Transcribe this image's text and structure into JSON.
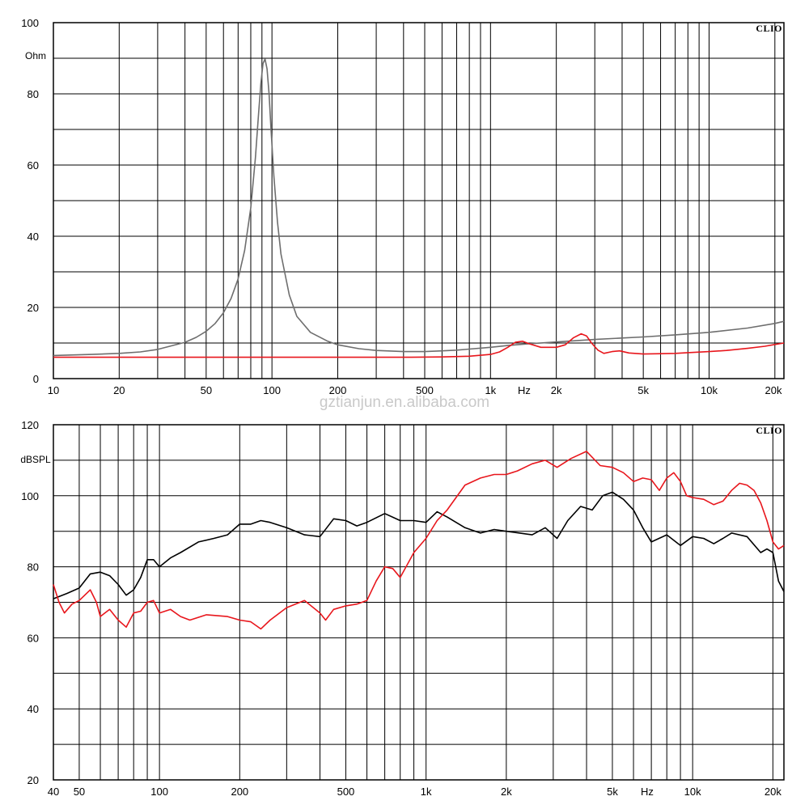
{
  "watermark": "gztianjun.en.alibaba.com",
  "chart_data": [
    {
      "type": "line",
      "brand": "CLIO",
      "ylabel": "Ohm",
      "xunit": "Hz",
      "xscale": "log",
      "xlim": [
        10,
        22000
      ],
      "ylim": [
        0,
        100
      ],
      "grid": true,
      "xticks": [
        {
          "v": 10,
          "label": "10"
        },
        {
          "v": 20,
          "label": "20"
        },
        {
          "v": 50,
          "label": "50"
        },
        {
          "v": 100,
          "label": "100"
        },
        {
          "v": 200,
          "label": "200"
        },
        {
          "v": 500,
          "label": "500"
        },
        {
          "v": 1000,
          "label": "1k"
        },
        {
          "v": 2000,
          "label": "2k"
        },
        {
          "v": 5000,
          "label": "5k"
        },
        {
          "v": 10000,
          "label": "10k"
        },
        {
          "v": 20000,
          "label": "20k"
        }
      ],
      "yticks": [
        {
          "v": 0,
          "label": "0"
        },
        {
          "v": 20,
          "label": "20"
        },
        {
          "v": 40,
          "label": "40"
        },
        {
          "v": 60,
          "label": "60"
        },
        {
          "v": 80,
          "label": "80"
        },
        {
          "v": 100,
          "label": "100"
        }
      ],
      "series": [
        {
          "color": "#6e6e6e",
          "points": [
            [
              10,
              6.5
            ],
            [
              15,
              6.8
            ],
            [
              20,
              7.1
            ],
            [
              25,
              7.5
            ],
            [
              30,
              8.2
            ],
            [
              40,
              10.2
            ],
            [
              45,
              11.6
            ],
            [
              50,
              13.3
            ],
            [
              55,
              15.5
            ],
            [
              60,
              18.5
            ],
            [
              65,
              22.5
            ],
            [
              70,
              28
            ],
            [
              75,
              36
            ],
            [
              80,
              48
            ],
            [
              84,
              62
            ],
            [
              87,
              75
            ],
            [
              89,
              83
            ],
            [
              91,
              88.5
            ],
            [
              93,
              89.8
            ],
            [
              95,
              87
            ],
            [
              97,
              80
            ],
            [
              99,
              70
            ],
            [
              102,
              57
            ],
            [
              106,
              44
            ],
            [
              110,
              35
            ],
            [
              120,
              23.5
            ],
            [
              130,
              17.5
            ],
            [
              150,
              13
            ],
            [
              180,
              10.5
            ],
            [
              200,
              9.5
            ],
            [
              250,
              8.4
            ],
            [
              300,
              7.9
            ],
            [
              400,
              7.6
            ],
            [
              500,
              7.6
            ],
            [
              600,
              7.8
            ],
            [
              700,
              8
            ],
            [
              800,
              8.3
            ],
            [
              1000,
              8.8
            ],
            [
              1200,
              9.3
            ],
            [
              1500,
              9.8
            ],
            [
              2000,
              10.3
            ],
            [
              3000,
              11
            ],
            [
              4000,
              11.4
            ],
            [
              5000,
              11.7
            ],
            [
              7000,
              12.3
            ],
            [
              10000,
              13
            ],
            [
              15000,
              14.2
            ],
            [
              20000,
              15.5
            ],
            [
              22000,
              16.1
            ]
          ]
        },
        {
          "color": "#e8161c",
          "points": [
            [
              10,
              6
            ],
            [
              50,
              6
            ],
            [
              100,
              6
            ],
            [
              200,
              6
            ],
            [
              400,
              6
            ],
            [
              600,
              6.1
            ],
            [
              800,
              6.3
            ],
            [
              1000,
              6.8
            ],
            [
              1100,
              7.5
            ],
            [
              1200,
              8.8
            ],
            [
              1300,
              10.2
            ],
            [
              1400,
              10.5
            ],
            [
              1500,
              9.8
            ],
            [
              1700,
              8.8
            ],
            [
              2000,
              8.8
            ],
            [
              2200,
              9.5
            ],
            [
              2400,
              11.5
            ],
            [
              2600,
              12.6
            ],
            [
              2750,
              12
            ],
            [
              2900,
              10
            ],
            [
              3100,
              8
            ],
            [
              3300,
              7.1
            ],
            [
              3600,
              7.6
            ],
            [
              3900,
              7.8
            ],
            [
              4300,
              7.2
            ],
            [
              5000,
              6.9
            ],
            [
              6000,
              7
            ],
            [
              7000,
              7.1
            ],
            [
              8000,
              7.3
            ],
            [
              10000,
              7.6
            ],
            [
              12000,
              7.9
            ],
            [
              15000,
              8.5
            ],
            [
              18000,
              9.1
            ],
            [
              20000,
              9.6
            ],
            [
              22000,
              10
            ]
          ]
        }
      ]
    },
    {
      "type": "line",
      "brand": "CLIO",
      "ylabel": "dBSPL",
      "xunit": "Hz",
      "xscale": "log",
      "xlim": [
        40,
        22000
      ],
      "ylim": [
        20,
        120
      ],
      "grid": true,
      "xticks": [
        {
          "v": 40,
          "label": "40"
        },
        {
          "v": 50,
          "label": "50"
        },
        {
          "v": 100,
          "label": "100"
        },
        {
          "v": 200,
          "label": "200"
        },
        {
          "v": 500,
          "label": "500"
        },
        {
          "v": 1000,
          "label": "1k"
        },
        {
          "v": 2000,
          "label": "2k"
        },
        {
          "v": 5000,
          "label": "5k"
        },
        {
          "v": 10000,
          "label": "10k"
        },
        {
          "v": 20000,
          "label": "20k"
        }
      ],
      "yticks": [
        {
          "v": 20,
          "label": "20"
        },
        {
          "v": 40,
          "label": "40"
        },
        {
          "v": 60,
          "label": "60"
        },
        {
          "v": 80,
          "label": "80"
        },
        {
          "v": 100,
          "label": "100"
        },
        {
          "v": 120,
          "label": "120"
        }
      ],
      "series": [
        {
          "color": "#000000",
          "points": [
            [
              40,
              71
            ],
            [
              45,
              72.5
            ],
            [
              50,
              74
            ],
            [
              55,
              78
            ],
            [
              60,
              78.5
            ],
            [
              65,
              77.5
            ],
            [
              70,
              75
            ],
            [
              75,
              72
            ],
            [
              80,
              73.5
            ],
            [
              85,
              77
            ],
            [
              90,
              82
            ],
            [
              95,
              82
            ],
            [
              100,
              80
            ],
            [
              110,
              82.5
            ],
            [
              120,
              84
            ],
            [
              140,
              87
            ],
            [
              160,
              88
            ],
            [
              180,
              89
            ],
            [
              200,
              92
            ],
            [
              220,
              92
            ],
            [
              240,
              93
            ],
            [
              260,
              92.5
            ],
            [
              300,
              91
            ],
            [
              350,
              89
            ],
            [
              400,
              88.5
            ],
            [
              450,
              93.5
            ],
            [
              500,
              93
            ],
            [
              550,
              91.5
            ],
            [
              600,
              92.5
            ],
            [
              700,
              95
            ],
            [
              800,
              93
            ],
            [
              900,
              93
            ],
            [
              1000,
              92.5
            ],
            [
              1100,
              95.5
            ],
            [
              1200,
              94
            ],
            [
              1400,
              91
            ],
            [
              1600,
              89.5
            ],
            [
              1800,
              90.5
            ],
            [
              2000,
              90
            ],
            [
              2500,
              89
            ],
            [
              2800,
              91
            ],
            [
              3100,
              88
            ],
            [
              3400,
              93
            ],
            [
              3800,
              97
            ],
            [
              4200,
              96
            ],
            [
              4600,
              100
            ],
            [
              5000,
              101
            ],
            [
              5500,
              99
            ],
            [
              6000,
              96
            ],
            [
              6500,
              91
            ],
            [
              7000,
              87
            ],
            [
              8000,
              89
            ],
            [
              9000,
              86
            ],
            [
              10000,
              88.5
            ],
            [
              11000,
              88
            ],
            [
              12000,
              86.5
            ],
            [
              13000,
              88
            ],
            [
              14000,
              89.5
            ],
            [
              16000,
              88.5
            ],
            [
              18000,
              84
            ],
            [
              19000,
              85
            ],
            [
              20000,
              84
            ],
            [
              21000,
              76
            ],
            [
              22000,
              73
            ]
          ]
        },
        {
          "color": "#e8161c",
          "points": [
            [
              40,
              75
            ],
            [
              42,
              70
            ],
            [
              44,
              67
            ],
            [
              47,
              69.5
            ],
            [
              50,
              70.5
            ],
            [
              55,
              73.5
            ],
            [
              58,
              70
            ],
            [
              60,
              66
            ],
            [
              65,
              68
            ],
            [
              70,
              65
            ],
            [
              75,
              63
            ],
            [
              80,
              67
            ],
            [
              85,
              67.5
            ],
            [
              90,
              70
            ],
            [
              95,
              70.5
            ],
            [
              100,
              67
            ],
            [
              110,
              68
            ],
            [
              120,
              66
            ],
            [
              130,
              65
            ],
            [
              150,
              66.5
            ],
            [
              180,
              66
            ],
            [
              200,
              65
            ],
            [
              220,
              64.5
            ],
            [
              240,
              62.5
            ],
            [
              260,
              65
            ],
            [
              300,
              68.5
            ],
            [
              350,
              70.5
            ],
            [
              400,
              67
            ],
            [
              420,
              65
            ],
            [
              450,
              68
            ],
            [
              500,
              69
            ],
            [
              550,
              69.5
            ],
            [
              600,
              70.5
            ],
            [
              650,
              76
            ],
            [
              700,
              80
            ],
            [
              750,
              79.5
            ],
            [
              800,
              77
            ],
            [
              900,
              84
            ],
            [
              1000,
              88
            ],
            [
              1100,
              93
            ],
            [
              1200,
              96
            ],
            [
              1400,
              103
            ],
            [
              1600,
              105
            ],
            [
              1800,
              106
            ],
            [
              2000,
              106
            ],
            [
              2200,
              107
            ],
            [
              2500,
              109
            ],
            [
              2800,
              110
            ],
            [
              3100,
              108
            ],
            [
              3500,
              110.5
            ],
            [
              4000,
              112.5
            ],
            [
              4500,
              108.5
            ],
            [
              5000,
              108
            ],
            [
              5500,
              106.5
            ],
            [
              6000,
              104
            ],
            [
              6500,
              105
            ],
            [
              7000,
              104.5
            ],
            [
              7500,
              101.5
            ],
            [
              8000,
              105
            ],
            [
              8500,
              106.5
            ],
            [
              9000,
              104
            ],
            [
              9500,
              100
            ],
            [
              10000,
              99.5
            ],
            [
              11000,
              99
            ],
            [
              12000,
              97.5
            ],
            [
              13000,
              98.5
            ],
            [
              14000,
              101.5
            ],
            [
              15000,
              103.5
            ],
            [
              16000,
              103
            ],
            [
              17000,
              101.5
            ],
            [
              18000,
              98
            ],
            [
              19000,
              93
            ],
            [
              20000,
              87
            ],
            [
              21000,
              85
            ],
            [
              22000,
              86
            ]
          ]
        }
      ]
    }
  ]
}
